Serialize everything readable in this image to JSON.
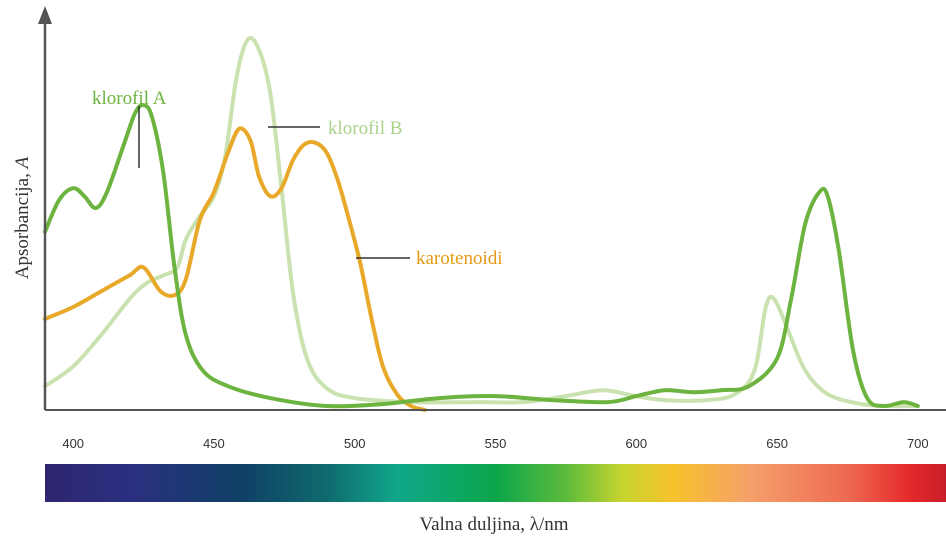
{
  "chart_data": {
    "type": "line",
    "xlabel": "Valna duljina, λ/nm",
    "ylabel_main": "Apsorbancija, ",
    "ylabel_symbol": "A",
    "xlim": [
      390,
      710
    ],
    "ylim": [
      0,
      1.0
    ],
    "x_ticks": [
      400,
      450,
      500,
      550,
      600,
      650,
      700
    ],
    "x_tick_labels": [
      "400",
      "450",
      "500",
      "550",
      "600",
      "650",
      "700"
    ],
    "y_ticks_shown": false,
    "spectrum_bar": {
      "stops": [
        {
          "nm": 390,
          "color": "#2e2670"
        },
        {
          "nm": 420,
          "color": "#2b2f80"
        },
        {
          "nm": 460,
          "color": "#0f4066"
        },
        {
          "nm": 490,
          "color": "#0f6a6e"
        },
        {
          "nm": 515,
          "color": "#10a78a"
        },
        {
          "nm": 550,
          "color": "#0ba64a"
        },
        {
          "nm": 575,
          "color": "#5dbb3c"
        },
        {
          "nm": 595,
          "color": "#c6d42e"
        },
        {
          "nm": 613,
          "color": "#f7c22c"
        },
        {
          "nm": 640,
          "color": "#f5a06a"
        },
        {
          "nm": 675,
          "color": "#ee6a52"
        },
        {
          "nm": 697,
          "color": "#e52a2a"
        },
        {
          "nm": 710,
          "color": "#c81e2a"
        }
      ]
    },
    "series": [
      {
        "name": "klorofil B",
        "color": "#c9e2b0",
        "points": [
          [
            390,
            0.06
          ],
          [
            400,
            0.11
          ],
          [
            410,
            0.19
          ],
          [
            420,
            0.28
          ],
          [
            426,
            0.32
          ],
          [
            432,
            0.34
          ],
          [
            437,
            0.36
          ],
          [
            440,
            0.43
          ],
          [
            445,
            0.49
          ],
          [
            450,
            0.54
          ],
          [
            454,
            0.64
          ],
          [
            458,
            0.84
          ],
          [
            462,
            0.935
          ],
          [
            466,
            0.91
          ],
          [
            470,
            0.8
          ],
          [
            474,
            0.56
          ],
          [
            478,
            0.3
          ],
          [
            483,
            0.13
          ],
          [
            490,
            0.055
          ],
          [
            500,
            0.03
          ],
          [
            520,
            0.02
          ],
          [
            545,
            0.02
          ],
          [
            560,
            0.02
          ],
          [
            575,
            0.035
          ],
          [
            588,
            0.05
          ],
          [
            600,
            0.035
          ],
          [
            610,
            0.025
          ],
          [
            625,
            0.025
          ],
          [
            635,
            0.04
          ],
          [
            642,
            0.1
          ],
          [
            646,
            0.26
          ],
          [
            649,
            0.28
          ],
          [
            654,
            0.2
          ],
          [
            660,
            0.1
          ],
          [
            668,
            0.04
          ],
          [
            680,
            0.015
          ],
          [
            690,
            0.01
          ],
          [
            700,
            0.01
          ]
        ]
      },
      {
        "name": "karotenoidi",
        "color": "#e8a92a",
        "points": [
          [
            390,
            0.23
          ],
          [
            400,
            0.26
          ],
          [
            410,
            0.3
          ],
          [
            420,
            0.34
          ],
          [
            425,
            0.36
          ],
          [
            431,
            0.3
          ],
          [
            436,
            0.29
          ],
          [
            440,
            0.33
          ],
          [
            445,
            0.48
          ],
          [
            450,
            0.55
          ],
          [
            455,
            0.65
          ],
          [
            459,
            0.71
          ],
          [
            463,
            0.68
          ],
          [
            466,
            0.59
          ],
          [
            470,
            0.54
          ],
          [
            474,
            0.56
          ],
          [
            478,
            0.63
          ],
          [
            482,
            0.67
          ],
          [
            486,
            0.675
          ],
          [
            490,
            0.65
          ],
          [
            494,
            0.58
          ],
          [
            498,
            0.48
          ],
          [
            502,
            0.37
          ],
          [
            506,
            0.23
          ],
          [
            510,
            0.11
          ],
          [
            515,
            0.04
          ],
          [
            520,
            0.01
          ],
          [
            525,
            0.0
          ]
        ]
      },
      {
        "name": "klorofil A",
        "color": "#6db33f",
        "points": [
          [
            390,
            0.45
          ],
          [
            395,
            0.53
          ],
          [
            400,
            0.56
          ],
          [
            404,
            0.54
          ],
          [
            408,
            0.51
          ],
          [
            412,
            0.55
          ],
          [
            418,
            0.67
          ],
          [
            422,
            0.75
          ],
          [
            425,
            0.77
          ],
          [
            428,
            0.74
          ],
          [
            432,
            0.6
          ],
          [
            436,
            0.36
          ],
          [
            440,
            0.19
          ],
          [
            446,
            0.1
          ],
          [
            455,
            0.06
          ],
          [
            470,
            0.03
          ],
          [
            490,
            0.01
          ],
          [
            510,
            0.015
          ],
          [
            530,
            0.03
          ],
          [
            550,
            0.035
          ],
          [
            570,
            0.025
          ],
          [
            590,
            0.02
          ],
          [
            600,
            0.035
          ],
          [
            610,
            0.05
          ],
          [
            620,
            0.045
          ],
          [
            630,
            0.05
          ],
          [
            640,
            0.06
          ],
          [
            650,
            0.13
          ],
          [
            655,
            0.28
          ],
          [
            660,
            0.47
          ],
          [
            665,
            0.55
          ],
          [
            668,
            0.54
          ],
          [
            672,
            0.4
          ],
          [
            677,
            0.15
          ],
          [
            682,
            0.03
          ],
          [
            688,
            0.01
          ],
          [
            695,
            0.02
          ],
          [
            700,
            0.01
          ]
        ]
      }
    ]
  },
  "labels": {
    "klorofil_a": "klorofil A",
    "klorofil_b": "klorofil B",
    "karotenoidi": "karotenoidi"
  }
}
